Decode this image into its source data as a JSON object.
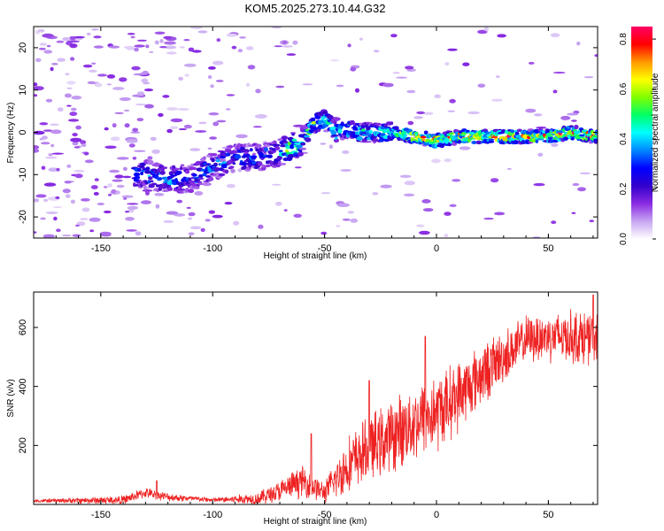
{
  "title": "KOM5.2025.273.10.44.G32",
  "chart_data": [
    {
      "type": "heatmap",
      "xlabel": "Height of straight line (km)",
      "ylabel": "Frequency (Hz)",
      "xlim": [
        -180,
        72
      ],
      "ylim": [
        -25,
        25
      ],
      "x_ticks": [
        -150,
        -100,
        -50,
        0,
        50
      ],
      "y_ticks": [
        -20,
        -10,
        0,
        10,
        20
      ],
      "colorbar": {
        "label": "Normalized spectral amplitude",
        "range": [
          0,
          0.85
        ],
        "ticks": [
          0.0,
          0.2,
          0.4,
          0.6,
          0.8
        ],
        "colormap": [
          "#ffffff",
          "#c8a6f2",
          "#8a2be2",
          "#3300cc",
          "#0000ff",
          "#0088ff",
          "#00ffff",
          "#00ff66",
          "#7fff00",
          "#ffff00",
          "#ff9900",
          "#ff0000",
          "#ff0066"
        ]
      },
      "ridge": {
        "description": "Doppler signal trace",
        "points": [
          [
            -130,
            -10
          ],
          [
            -120,
            -11
          ],
          [
            -110,
            -11
          ],
          [
            -100,
            -8
          ],
          [
            -90,
            -6
          ],
          [
            -80,
            -6
          ],
          [
            -70,
            -5
          ],
          [
            -60,
            -2
          ],
          [
            -55,
            2
          ],
          [
            -50,
            3
          ],
          [
            -45,
            0
          ],
          [
            -40,
            1
          ],
          [
            -35,
            0
          ],
          [
            -30,
            0
          ],
          [
            -20,
            0
          ],
          [
            -10,
            -1
          ],
          [
            0,
            -2
          ],
          [
            10,
            -1
          ],
          [
            20,
            -1
          ],
          [
            30,
            -1
          ],
          [
            40,
            -1
          ],
          [
            50,
            -1
          ],
          [
            60,
            0
          ],
          [
            72,
            -1
          ]
        ],
        "peak_amplitude": 0.85
      }
    },
    {
      "type": "line",
      "xlabel": "Height of straight line (km)",
      "ylabel": "SNR (v/v)",
      "xlim": [
        -180,
        72
      ],
      "ylim": [
        0,
        720
      ],
      "x_ticks": [
        -150,
        -100,
        -50,
        0,
        50
      ],
      "y_ticks": [
        200,
        400,
        600
      ],
      "color": "#ee2222",
      "trend": {
        "x": [
          -180,
          -140,
          -130,
          -120,
          -100,
          -80,
          -70,
          -60,
          -50,
          -40,
          -30,
          -20,
          -10,
          0,
          10,
          20,
          30,
          40,
          50,
          60,
          72
        ],
        "y": [
          12,
          15,
          40,
          25,
          15,
          20,
          45,
          80,
          40,
          130,
          190,
          230,
          280,
          310,
          370,
          440,
          500,
          560,
          570,
          570,
          560
        ]
      },
      "noise_amplitude": {
        "x": [
          -180,
          -130,
          -100,
          -80,
          -60,
          -50,
          -40,
          -20,
          0,
          20,
          40,
          72
        ],
        "y": [
          6,
          20,
          8,
          25,
          60,
          40,
          110,
          140,
          150,
          120,
          90,
          110
        ]
      },
      "spikes": [
        [
          -125,
          80
        ],
        [
          -56,
          240
        ],
        [
          -30,
          420
        ],
        [
          -5,
          570
        ],
        [
          70,
          710
        ]
      ]
    }
  ]
}
